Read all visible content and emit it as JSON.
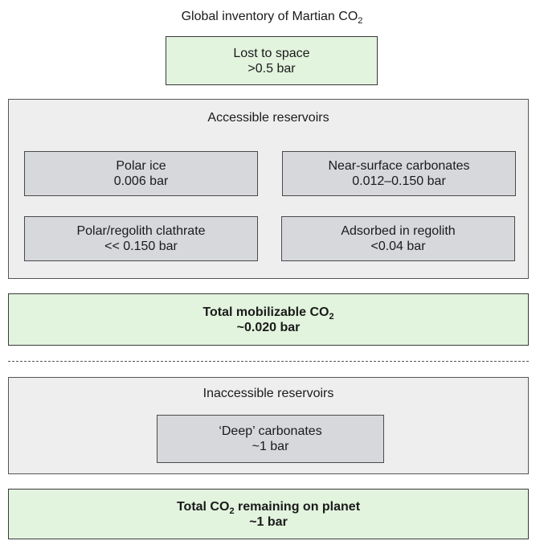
{
  "title": {
    "text": "Global inventory of Martian CO",
    "sub": "2"
  },
  "lost_to_space": {
    "line1": "Lost to space",
    "line2": ">0.5 bar"
  },
  "accessible": {
    "heading": "Accessible reservoirs",
    "items": [
      {
        "name": "Polar ice",
        "value": "0.006 bar"
      },
      {
        "name": "Near-surface carbonates",
        "value": "0.012–0.150 bar"
      },
      {
        "name": "Polar/regolith clathrate",
        "value": "<< 0.150 bar"
      },
      {
        "name": "Adsorbed in regolith",
        "value": "<0.04 bar"
      }
    ]
  },
  "total_mobilizable": {
    "text": "Total mobilizable CO",
    "sub": "2",
    "value": "~0.020 bar"
  },
  "inaccessible": {
    "heading": "Inaccessible reservoirs",
    "items": [
      {
        "name": "‘Deep’ carbonates",
        "value": "~1 bar"
      }
    ]
  },
  "total_remaining": {
    "pre": "Total CO",
    "sub": "2",
    "post": " remaining on planet",
    "value": "~1 bar"
  },
  "colors": {
    "green_fill": "#e2f3de",
    "gray_outer": "#eeeeef",
    "gray_inner": "#d6d8dc"
  }
}
